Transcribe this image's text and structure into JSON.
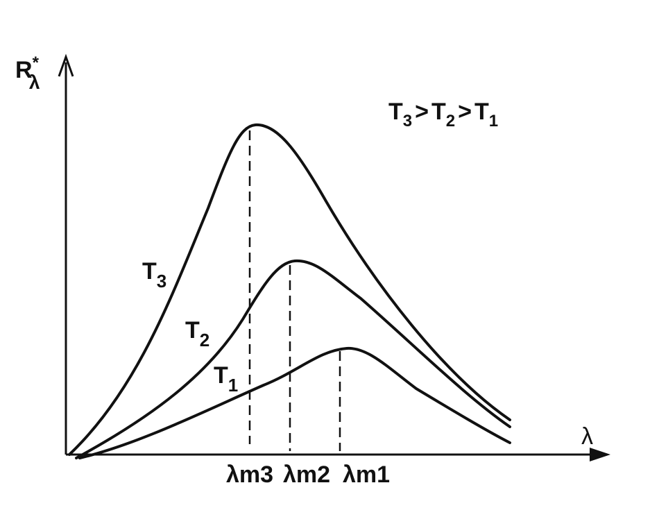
{
  "y_axis_label": {
    "base": "R",
    "sup": "*",
    "sub": "λ"
  },
  "x_axis_label": "λ",
  "relation": [
    {
      "base": "T",
      "sub": "3"
    },
    ">",
    {
      "base": "T",
      "sub": "2"
    },
    ">",
    {
      "base": "T",
      "sub": "1"
    }
  ],
  "curves": [
    {
      "label": {
        "base": "T",
        "sub": "3"
      },
      "peak_label": "λm3"
    },
    {
      "label": {
        "base": "T",
        "sub": "2"
      },
      "peak_label": "λm2"
    },
    {
      "label": {
        "base": "T",
        "sub": "1"
      },
      "peak_label": "λm1"
    }
  ]
}
